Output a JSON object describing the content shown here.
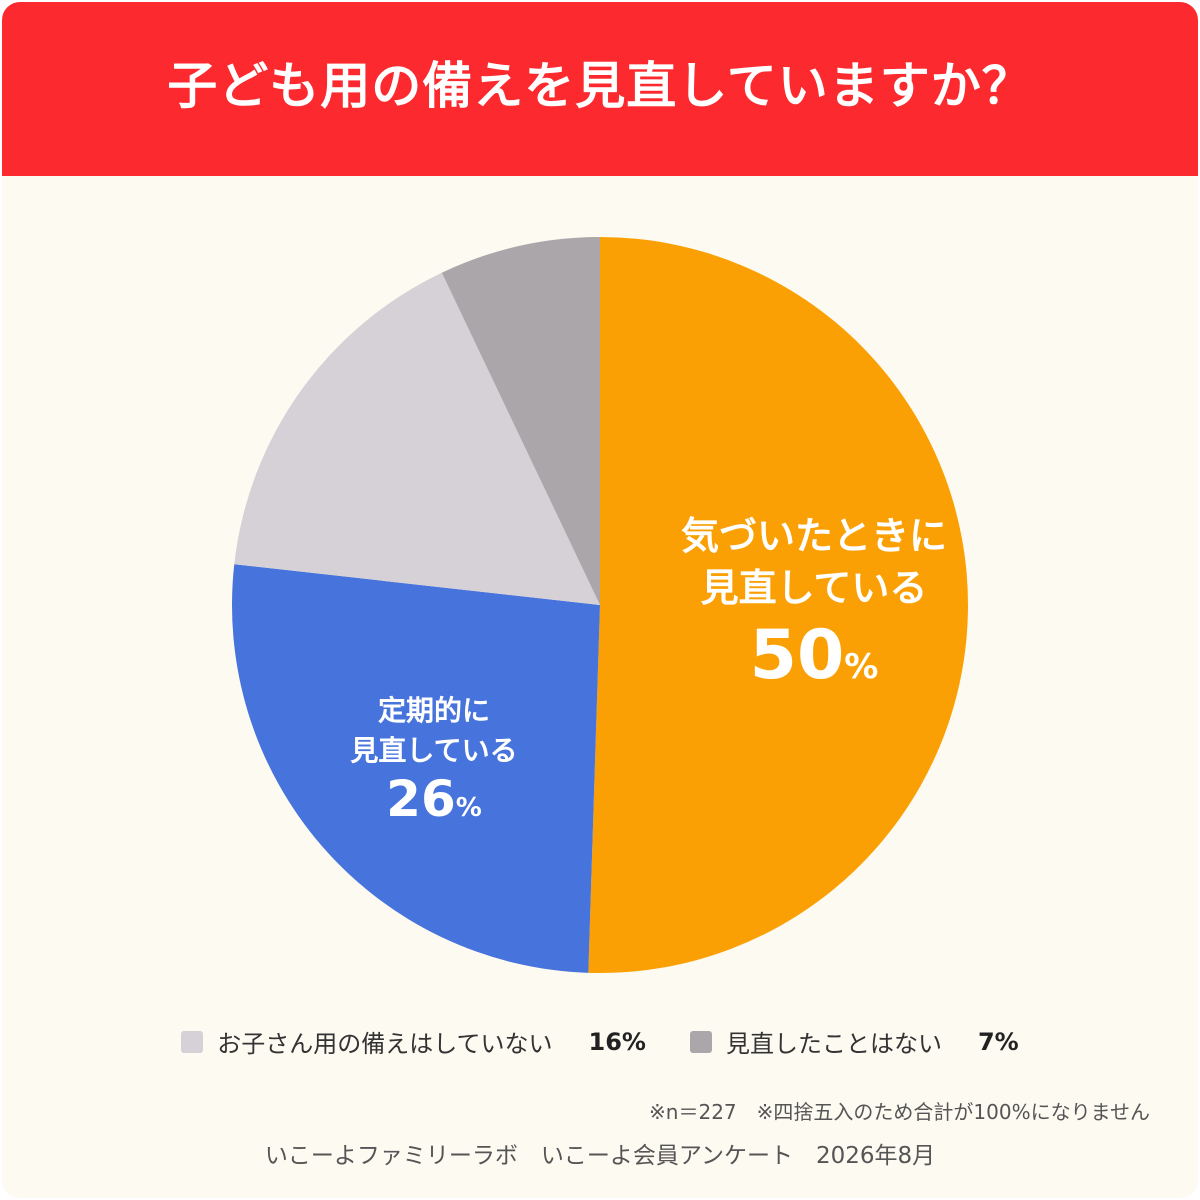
{
  "title": "子ども用の備えを見直していますか？",
  "chart_data": {
    "type": "pie",
    "title": "子ども用の備えを見直していますか？",
    "slices": [
      {
        "label": "気づいたときに見直している",
        "label_lines": [
          "気づいたときに",
          "見直している"
        ],
        "value": 50,
        "color": "#fba004"
      },
      {
        "label": "定期的に見直している",
        "label_lines": [
          "定期的に",
          "見直している"
        ],
        "value": 26,
        "color": "#4773dd"
      },
      {
        "label": "お子さん用の備えはしていない",
        "value": 16,
        "color": "#d5d1d6"
      },
      {
        "label": "見直したことはない",
        "value": 7,
        "color": "#aaa6aa"
      }
    ],
    "unit": "%"
  },
  "labels": {
    "slice0": {
      "line1": "気づいたときに",
      "line2": "見直している",
      "value": "50",
      "unit": "%"
    },
    "slice1": {
      "line1": "定期的に",
      "line2": "見直している",
      "value": "26",
      "unit": "%"
    }
  },
  "legend": [
    {
      "label": "お子さん用の備えはしていない",
      "value": "16%",
      "color": "#d5d1d6"
    },
    {
      "label": "見直したことはない",
      "value": "7%",
      "color": "#aaa6aa"
    }
  ],
  "note": "※n＝227　※四捨五入のため合計が100%になりません",
  "source": "いこーよファミリーラボ　いこーよ会員アンケート　2026年8月"
}
